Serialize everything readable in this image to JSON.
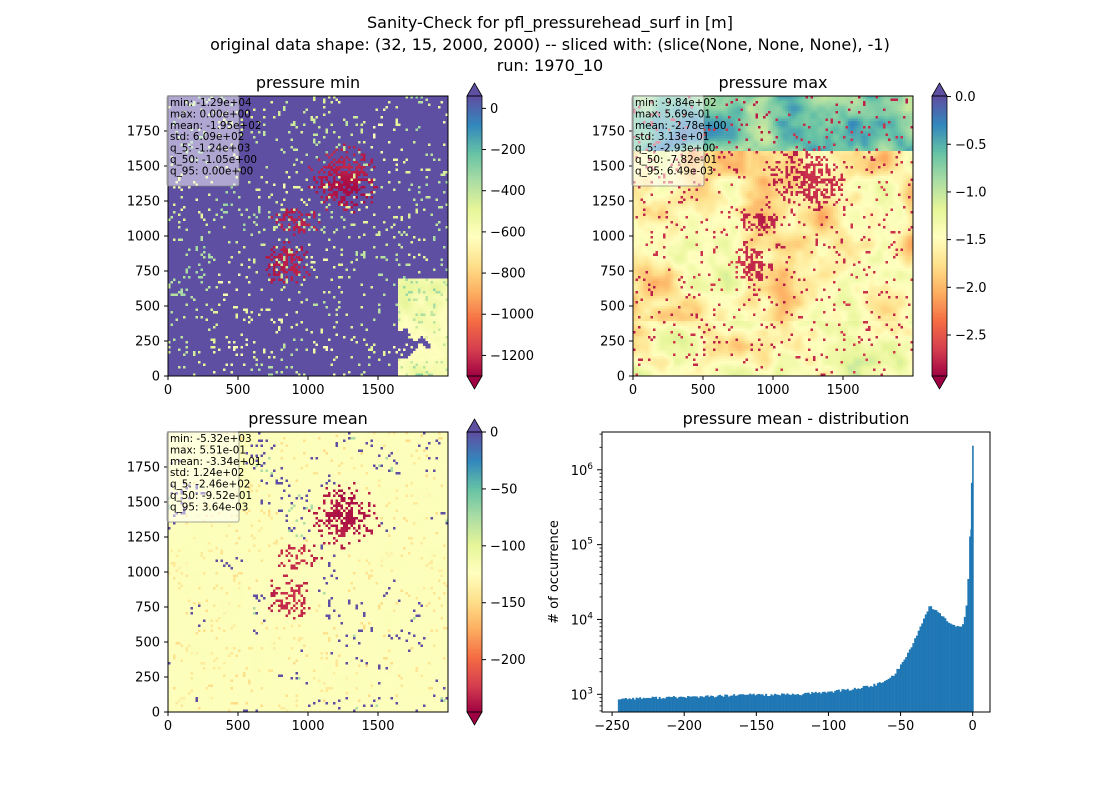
{
  "figure": {
    "suptitle_lines": [
      "Sanity-Check for pfl_pressurehead_surf in [m]",
      "original data shape: (32, 15, 2000, 2000) -- sliced with: (slice(None, None, None), -1)",
      "run: 1970_10"
    ]
  },
  "chart_data": [
    {
      "type": "heatmap",
      "title": "pressure min",
      "xticks": [
        "0",
        "500",
        "1000",
        "1500"
      ],
      "yticks": [
        "0",
        "250",
        "500",
        "750",
        "1000",
        "1250",
        "1500",
        "1750"
      ],
      "xlim": [
        0,
        2000
      ],
      "ylim": [
        0,
        2000
      ],
      "colormap": "Spectral",
      "colorbar": {
        "ticks": [
          "0",
          "−200",
          "−400",
          "−600",
          "−800",
          "−1000",
          "−1200"
        ],
        "tick_values": [
          0,
          -200,
          -400,
          -600,
          -800,
          -1000,
          -1200
        ],
        "vmin": -1300,
        "vmax": 60,
        "extend": "both"
      },
      "stats": [
        "min: -1.29e+04",
        "max: 0.00e+00",
        "mean: -1.95e+02",
        "std: 6.09e+02",
        "q_5: -1.24e+03",
        "q_50: -1.05e+00",
        "q_95: 0.00e+00"
      ]
    },
    {
      "type": "heatmap",
      "title": "pressure max",
      "xticks": [
        "0",
        "500",
        "1000",
        "1500"
      ],
      "yticks": [
        "0",
        "250",
        "500",
        "750",
        "1000",
        "1250",
        "1500",
        "1750"
      ],
      "xlim": [
        0,
        2000
      ],
      "ylim": [
        0,
        2000
      ],
      "colormap": "Spectral",
      "colorbar": {
        "ticks": [
          "0.0",
          "−0.5",
          "−1.0",
          "−1.5",
          "−2.0",
          "−2.5"
        ],
        "tick_values": [
          0,
          -0.5,
          -1.0,
          -1.5,
          -2.0,
          -2.5
        ],
        "vmin": -2.93,
        "vmax": 0.006,
        "extend": "both"
      },
      "stats": [
        "min: -9.84e+02",
        "max: 5.69e-01",
        "mean: -2.78e+00",
        "std: 3.13e+01",
        "q_5: -2.93e+00",
        "q_50: -7.82e-01",
        "q_95: 6.49e-03"
      ]
    },
    {
      "type": "heatmap",
      "title": "pressure mean",
      "xticks": [
        "0",
        "500",
        "1000",
        "1500"
      ],
      "yticks": [
        "0",
        "250",
        "500",
        "750",
        "1000",
        "1250",
        "1500",
        "1750"
      ],
      "xlim": [
        0,
        2000
      ],
      "ylim": [
        0,
        2000
      ],
      "colormap": "Spectral",
      "colorbar": {
        "ticks": [
          "0",
          "−50",
          "−100",
          "−150",
          "−200"
        ],
        "tick_values": [
          0,
          -50,
          -100,
          -150,
          -200
        ],
        "vmin": -246,
        "vmax": 0.0036,
        "extend": "both"
      },
      "stats": [
        "min: -5.32e+03",
        "max: 5.51e-01",
        "mean: -3.34e+01",
        "std: 1.24e+02",
        "q_5: -2.46e+02",
        "q_50: -9.52e-01",
        "q_95: 3.64e-03"
      ]
    },
    {
      "type": "bar",
      "title": "pressure mean - distribution",
      "ylabel": "# of occurrence",
      "xlabel": "",
      "xlim": [
        -257,
        12
      ],
      "ylim": [
        580,
        3200000
      ],
      "yscale": "log",
      "xticks": [
        "−250",
        "−200",
        "−150",
        "−100",
        "−50",
        "0"
      ],
      "xtick_values": [
        -250,
        -200,
        -150,
        -100,
        -50,
        0
      ],
      "ytick_exponents": [
        3,
        4,
        5,
        6
      ],
      "bar_color": "#1f77b4",
      "bin_range": [
        -246,
        0
      ],
      "bin_count": 200,
      "profile": [
        [
          -246,
          870
        ],
        [
          -235,
          885
        ],
        [
          -220,
          900
        ],
        [
          -200,
          920
        ],
        [
          -180,
          940
        ],
        [
          -160,
          980
        ],
        [
          -150,
          1000
        ],
        [
          -140,
          980
        ],
        [
          -120,
          1000
        ],
        [
          -110,
          1040
        ],
        [
          -100,
          1080
        ],
        [
          -90,
          1130
        ],
        [
          -80,
          1200
        ],
        [
          -70,
          1300
        ],
        [
          -60,
          1500
        ],
        [
          -55,
          1800
        ],
        [
          -50,
          2400
        ],
        [
          -45,
          3500
        ],
        [
          -40,
          5500
        ],
        [
          -35,
          9000
        ],
        [
          -32,
          12500
        ],
        [
          -30,
          15000
        ],
        [
          -27,
          14000
        ],
        [
          -24,
          12500
        ],
        [
          -20,
          10500
        ],
        [
          -16,
          9000
        ],
        [
          -12,
          8000
        ],
        [
          -8,
          8200
        ],
        [
          -6,
          9500
        ],
        [
          -4.5,
          14000
        ],
        [
          -3.5,
          26000
        ],
        [
          -2.5,
          55000
        ],
        [
          -1.7,
          160000
        ],
        [
          -1.0,
          420000
        ],
        [
          -0.5,
          800000
        ],
        [
          0,
          2100000
        ]
      ]
    }
  ]
}
